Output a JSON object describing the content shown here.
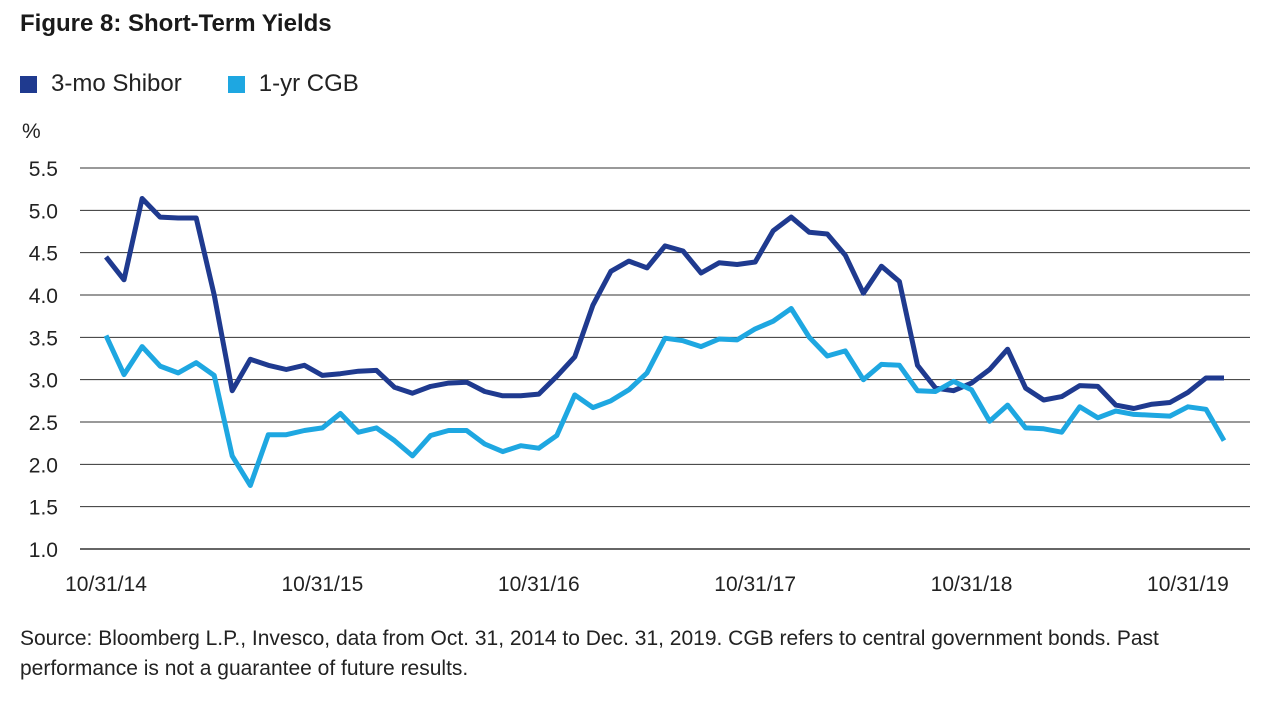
{
  "colors": {
    "shibor": "#1f3a8f",
    "cgb": "#1ea7e1",
    "grid": "#333333"
  },
  "chart_data": {
    "type": "line",
    "title": "Figure 8: Short-Term Yields",
    "ylabel": "%",
    "xlabel": "",
    "ylim": [
      1.0,
      5.5
    ],
    "yticks": [
      "1.0",
      "1.5",
      "2.0",
      "2.5",
      "3.0",
      "3.5",
      "4.0",
      "4.5",
      "5.0",
      "5.5"
    ],
    "xticks": [
      "10/31/14",
      "10/31/15",
      "10/31/16",
      "10/31/17",
      "10/31/18",
      "10/31/19"
    ],
    "grid": true,
    "legend_position": "top-left",
    "series": [
      {
        "name": "3-mo Shibor",
        "values": [
          4.45,
          4.18,
          5.14,
          4.92,
          4.91,
          4.91,
          4.0,
          2.87,
          3.24,
          3.17,
          3.12,
          3.17,
          3.05,
          3.07,
          3.1,
          3.11,
          2.91,
          2.84,
          2.92,
          2.96,
          2.97,
          2.86,
          2.81,
          2.81,
          2.83,
          3.04,
          3.27,
          3.88,
          4.28,
          4.4,
          4.32,
          4.58,
          4.52,
          4.26,
          4.38,
          4.36,
          4.39,
          4.76,
          4.92,
          4.74,
          4.72,
          4.47,
          4.02,
          4.34,
          4.16,
          3.17,
          2.9,
          2.87,
          2.96,
          3.12,
          3.36,
          2.9,
          2.76,
          2.8,
          2.93,
          2.92,
          2.7,
          2.66,
          2.71,
          2.73,
          2.85,
          3.02,
          3.02
        ]
      },
      {
        "name": "1-yr CGB",
        "values": [
          3.52,
          3.06,
          3.39,
          3.16,
          3.08,
          3.2,
          3.05,
          2.1,
          1.75,
          2.35,
          2.35,
          2.4,
          2.43,
          2.6,
          2.38,
          2.43,
          2.28,
          2.1,
          2.34,
          2.4,
          2.4,
          2.24,
          2.15,
          2.22,
          2.19,
          2.34,
          2.82,
          2.67,
          2.75,
          2.88,
          3.08,
          3.49,
          3.46,
          3.39,
          3.48,
          3.47,
          3.6,
          3.69,
          3.84,
          3.5,
          3.28,
          3.34,
          3.0,
          3.18,
          3.17,
          2.87,
          2.86,
          2.98,
          2.88,
          2.51,
          2.7,
          2.43,
          2.42,
          2.38,
          2.68,
          2.55,
          2.63,
          2.59,
          2.58,
          2.57,
          2.68,
          2.65,
          2.28
        ]
      }
    ]
  },
  "source_text": "Source: Bloomberg L.P., Invesco, data from Oct. 31, 2014 to Dec. 31, 2019. CGB refers to central government bonds. Past performance is not a guarantee of future results."
}
